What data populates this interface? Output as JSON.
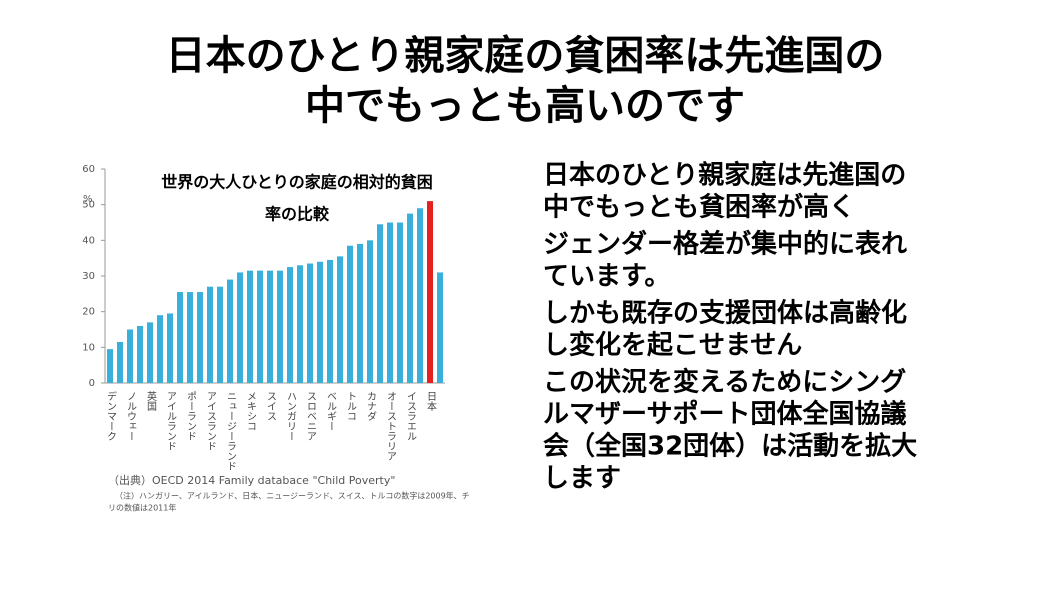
{
  "slide": {
    "title_lines": [
      "日本のひとり親家庭の貧困率は先進国の",
      "中でもっとも高いのです"
    ],
    "bullets": [
      [
        "日本のひとり親家庭は先進国の",
        "中でもっとも貧困率が高く"
      ],
      [
        "ジェンダー格差が集中的に表れ",
        "ています。"
      ],
      [
        "しかも既存の支援団体は高齢化",
        "し変化を起こせません"
      ],
      [
        "この状況を変えるためにシング",
        "ルマザーサポート団体全国協議",
        "会（全国32団体）は活動を拡大",
        "します"
      ]
    ]
  },
  "chart_data": {
    "type": "bar",
    "title_lines": [
      "世界の大人ひとりの家庭の相対的貧困",
      "率の比較"
    ],
    "y_unit": "%",
    "source": "（出典）OECD 2014 Family databace \"Child Poverty\"",
    "note_lines": [
      "（注）ハンガリー、アイルランド、日本、ニュージーランド、スイス、トルコの数字は2009年、チ",
      "リの数値は2011年"
    ],
    "categories": [
      "デンマーク",
      null,
      "ノルウェー",
      null,
      "英国",
      null,
      "アイルランド",
      null,
      "ポーランド",
      null,
      "アイスランド",
      null,
      "ニュージーランド",
      null,
      "メキシコ",
      null,
      "スイス",
      null,
      "ハンガリー",
      null,
      "スロベニア",
      null,
      "ベルギー",
      null,
      "トルコ",
      null,
      "カナダ",
      null,
      "オーストラリア",
      null,
      "イスラエル",
      null,
      "日本",
      null
    ],
    "values": [
      9.5,
      11.5,
      15,
      16,
      17,
      19,
      19.5,
      25.5,
      25.5,
      25.5,
      27,
      27,
      29,
      31,
      31.5,
      31.5,
      31.5,
      31.5,
      32.5,
      33,
      33.5,
      34,
      34.5,
      35.5,
      38.5,
      39,
      40,
      44.5,
      45,
      45,
      47.5,
      49,
      51,
      31
    ],
    "color": "#3aafd9",
    "highlight": {
      "index": 32,
      "color": "#e3221f"
    },
    "ylim": [
      0,
      60
    ],
    "yticks": [
      0,
      10,
      20,
      30,
      40,
      50,
      60
    ]
  }
}
